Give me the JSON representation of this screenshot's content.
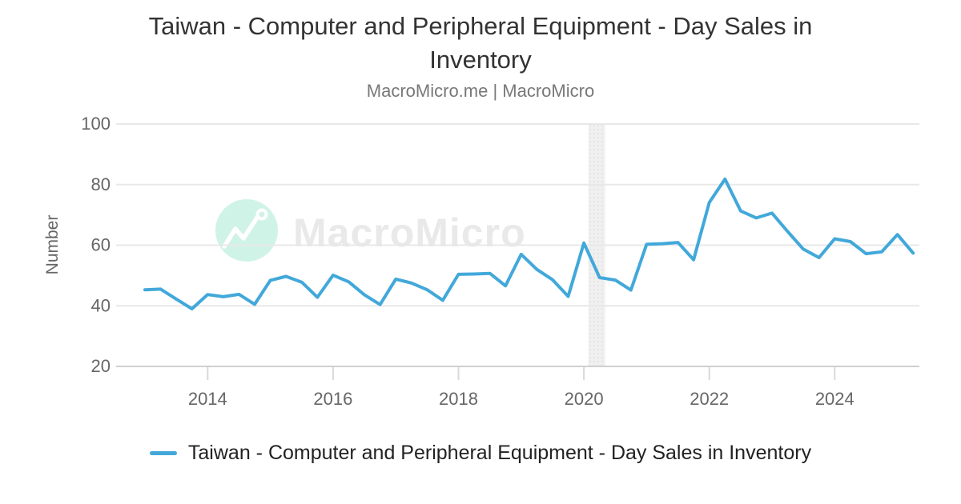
{
  "header": {
    "title": "Taiwan - Computer and Peripheral Equipment - Day Sales in Inventory",
    "title_lines": [
      "Taiwan - Computer and Peripheral Equipment - Day Sales in",
      "Inventory"
    ],
    "subtitle": "MacroMicro.me | MacroMicro"
  },
  "watermark": {
    "text": "MacroMicro",
    "circle_color": "#d0f3e7",
    "text_color": "#e9e9e9",
    "logo_color": "#ffffff"
  },
  "y_axis": {
    "label": "Number",
    "ticks": [
      100,
      80,
      60,
      40,
      20
    ],
    "min": 20,
    "max": 100
  },
  "x_axis": {
    "ticks": [
      2014,
      2016,
      2018,
      2020,
      2022,
      2024
    ]
  },
  "legend": {
    "label": "Taiwan - Computer and Peripheral Equipment - Day Sales in Inventory",
    "swatch_color": "#42a8da"
  },
  "colors": {
    "line": "#42a8da",
    "grid": "#e8e8e8",
    "axis_line": "#d0d0d0",
    "tick_mark": "#d9d9d9",
    "tick_text": "#666666",
    "band_fill": "#f0f0f0",
    "band_dot": "#dcdcdc",
    "title": "#333333",
    "subtitle": "#787878",
    "legend_text": "#222222"
  },
  "chart_data": {
    "type": "line",
    "title": "Taiwan - Computer and Peripheral Equipment - Day Sales in Inventory",
    "subtitle": "MacroMicro.me | MacroMicro",
    "xlabel": "",
    "ylabel": "Number",
    "xlim": [
      2012.54,
      2025.35
    ],
    "ylim": [
      20,
      100
    ],
    "y_ticks": [
      20,
      40,
      60,
      80,
      100
    ],
    "x_tick_years": [
      2014,
      2016,
      2018,
      2020,
      2022,
      2024
    ],
    "grid": "horizontal",
    "legend_position": "bottom",
    "plot_band": {
      "from": 2020.07,
      "to": 2020.34
    },
    "series": [
      {
        "name": "Taiwan - Computer and Peripheral Equipment - Day Sales in Inventory",
        "frequency": "quarterly",
        "x": [
          2013,
          2013.25,
          2013.5,
          2013.75,
          2014,
          2014.25,
          2014.5,
          2014.75,
          2015,
          2015.25,
          2015.5,
          2015.75,
          2016,
          2016.25,
          2016.5,
          2016.75,
          2017,
          2017.25,
          2017.5,
          2017.75,
          2018,
          2018.25,
          2018.5,
          2018.75,
          2019,
          2019.25,
          2019.5,
          2019.75,
          2020,
          2020.25,
          2020.5,
          2020.75,
          2021,
          2021.25,
          2021.5,
          2021.75,
          2022,
          2022.25,
          2022.5,
          2022.75,
          2023,
          2023.25,
          2023.5,
          2023.75,
          2024,
          2024.25,
          2024.5,
          2024.75,
          2025,
          2025.25
        ],
        "values": [
          45.3,
          45.5,
          42.2,
          39,
          43.7,
          43,
          43.8,
          40.5,
          48.4,
          49.7,
          47.8,
          42.8,
          50.1,
          47.9,
          43.6,
          40.4,
          48.8,
          47.5,
          45.3,
          41.8,
          50.4,
          50.5,
          50.7,
          46.6,
          57,
          52,
          48.6,
          43.1,
          60.7,
          49.3,
          48.5,
          45.2,
          60.3,
          60.5,
          60.9,
          55.2,
          74.1,
          81.8,
          71.3,
          69,
          70.6,
          64.5,
          58.7,
          55.9,
          62.1,
          61.2,
          57.2,
          57.8,
          63.5,
          57.4
        ]
      }
    ]
  }
}
